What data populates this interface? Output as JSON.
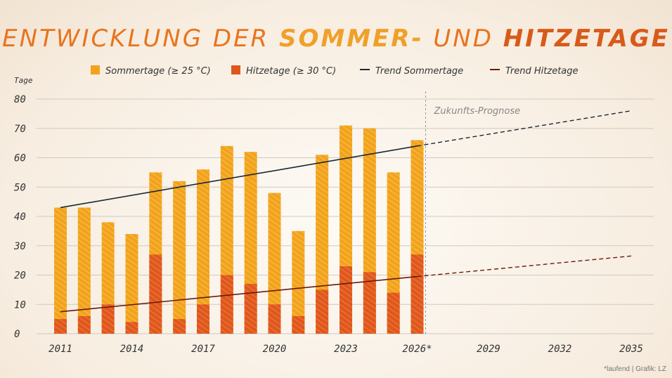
{
  "title": {
    "part1": "ENTWICKLUNG DER ",
    "part2": "SOMMER-",
    "part3": " UND ",
    "part4": "HITZETAGE"
  },
  "colors": {
    "sommer": "#f2a31b",
    "hitze": "#e0571c",
    "trend_sommer": "#1b2733",
    "trend_hitze": "#6b1a0c",
    "title_light": "#e9741d",
    "title_dark": "#d85a1a"
  },
  "credit": "*laufend | Grafik: LZ",
  "chart_data": {
    "type": "bar",
    "ylabel": "Tage",
    "ylim": [
      0,
      80
    ],
    "yticks": [
      0,
      10,
      20,
      30,
      40,
      50,
      60,
      70,
      80
    ],
    "xlim": [
      2011,
      2035
    ],
    "x_tick_labels": [
      "2011",
      "2014",
      "2017",
      "2020",
      "2023",
      "2026*",
      "2029",
      "2032",
      "2035"
    ],
    "x_tick_positions": [
      2011,
      2014,
      2017,
      2020,
      2023,
      2026,
      2029,
      2032,
      2035
    ],
    "forecast_start": 2026,
    "forecast_label": "Zukunfts-Prognose",
    "legend": {
      "sommer": "Sommertage (≥ 25 °C)",
      "hitze": "Hitzetage (≥ 30 °C)",
      "trend_sommer": "Trend Sommertage",
      "trend_hitze": "Trend Hitzetage"
    },
    "years": [
      2011,
      2012,
      2013,
      2014,
      2015,
      2016,
      2017,
      2018,
      2019,
      2020,
      2021,
      2022,
      2023,
      2024,
      2025,
      2026
    ],
    "series": [
      {
        "name": "Sommertage (≥ 25 °C)",
        "values": [
          43,
          43,
          38,
          34,
          55,
          52,
          56,
          64,
          62,
          48,
          35,
          61,
          71,
          70,
          55,
          66
        ]
      },
      {
        "name": "Hitzetage (≥ 30 °C)",
        "values": [
          5,
          6,
          10,
          4,
          27,
          5,
          10,
          20,
          17,
          10,
          6,
          15,
          23,
          21,
          14,
          27
        ]
      }
    ],
    "trend_sommer": {
      "from": [
        2011,
        43
      ],
      "to": [
        2026,
        64
      ],
      "forecast_to": [
        2035,
        76
      ]
    },
    "trend_hitze": {
      "from": [
        2011,
        7.5
      ],
      "to": [
        2026,
        19.5
      ],
      "forecast_to": [
        2035,
        26.5
      ]
    }
  }
}
